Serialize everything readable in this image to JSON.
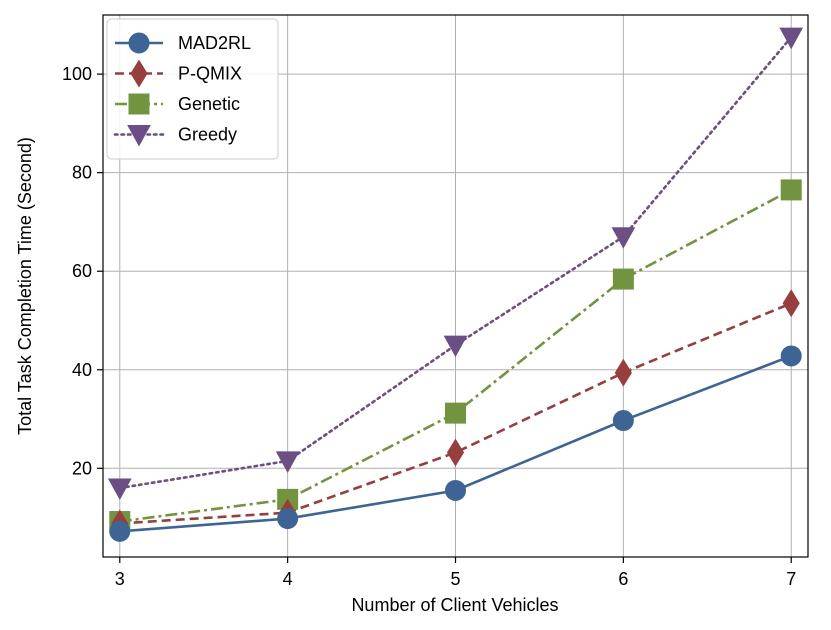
{
  "chart_data": {
    "type": "line",
    "title": "",
    "xlabel": "Number of Client Vehicles",
    "ylabel": "Total Task Completion Time (Second)",
    "x": [
      3,
      4,
      5,
      6,
      7
    ],
    "xlim": [
      2.9,
      7.1
    ],
    "ylim": [
      2,
      112
    ],
    "xticks": [
      3,
      4,
      5,
      6,
      7
    ],
    "yticks": [
      20,
      40,
      60,
      80,
      100
    ],
    "grid": true,
    "legend_position": "top-left",
    "series": [
      {
        "name": "MAD2RL",
        "values": [
          7.2,
          9.8,
          15.5,
          29.7,
          42.8
        ],
        "color": "#3d6494",
        "marker": "circle",
        "dash": "solid"
      },
      {
        "name": "P-QMIX",
        "values": [
          8.8,
          11.0,
          23.2,
          39.4,
          53.5
        ],
        "color": "#973e3e",
        "marker": "diamond",
        "dash": "dashed"
      },
      {
        "name": "Genetic",
        "values": [
          9.2,
          13.7,
          31.2,
          58.4,
          76.5
        ],
        "color": "#729440",
        "marker": "square",
        "dash": "dashdot"
      },
      {
        "name": "Greedy",
        "values": [
          16.0,
          21.5,
          45.0,
          67.0,
          107.5
        ],
        "color": "#6b4f84",
        "marker": "triangle-down",
        "dash": "dotted"
      }
    ]
  }
}
